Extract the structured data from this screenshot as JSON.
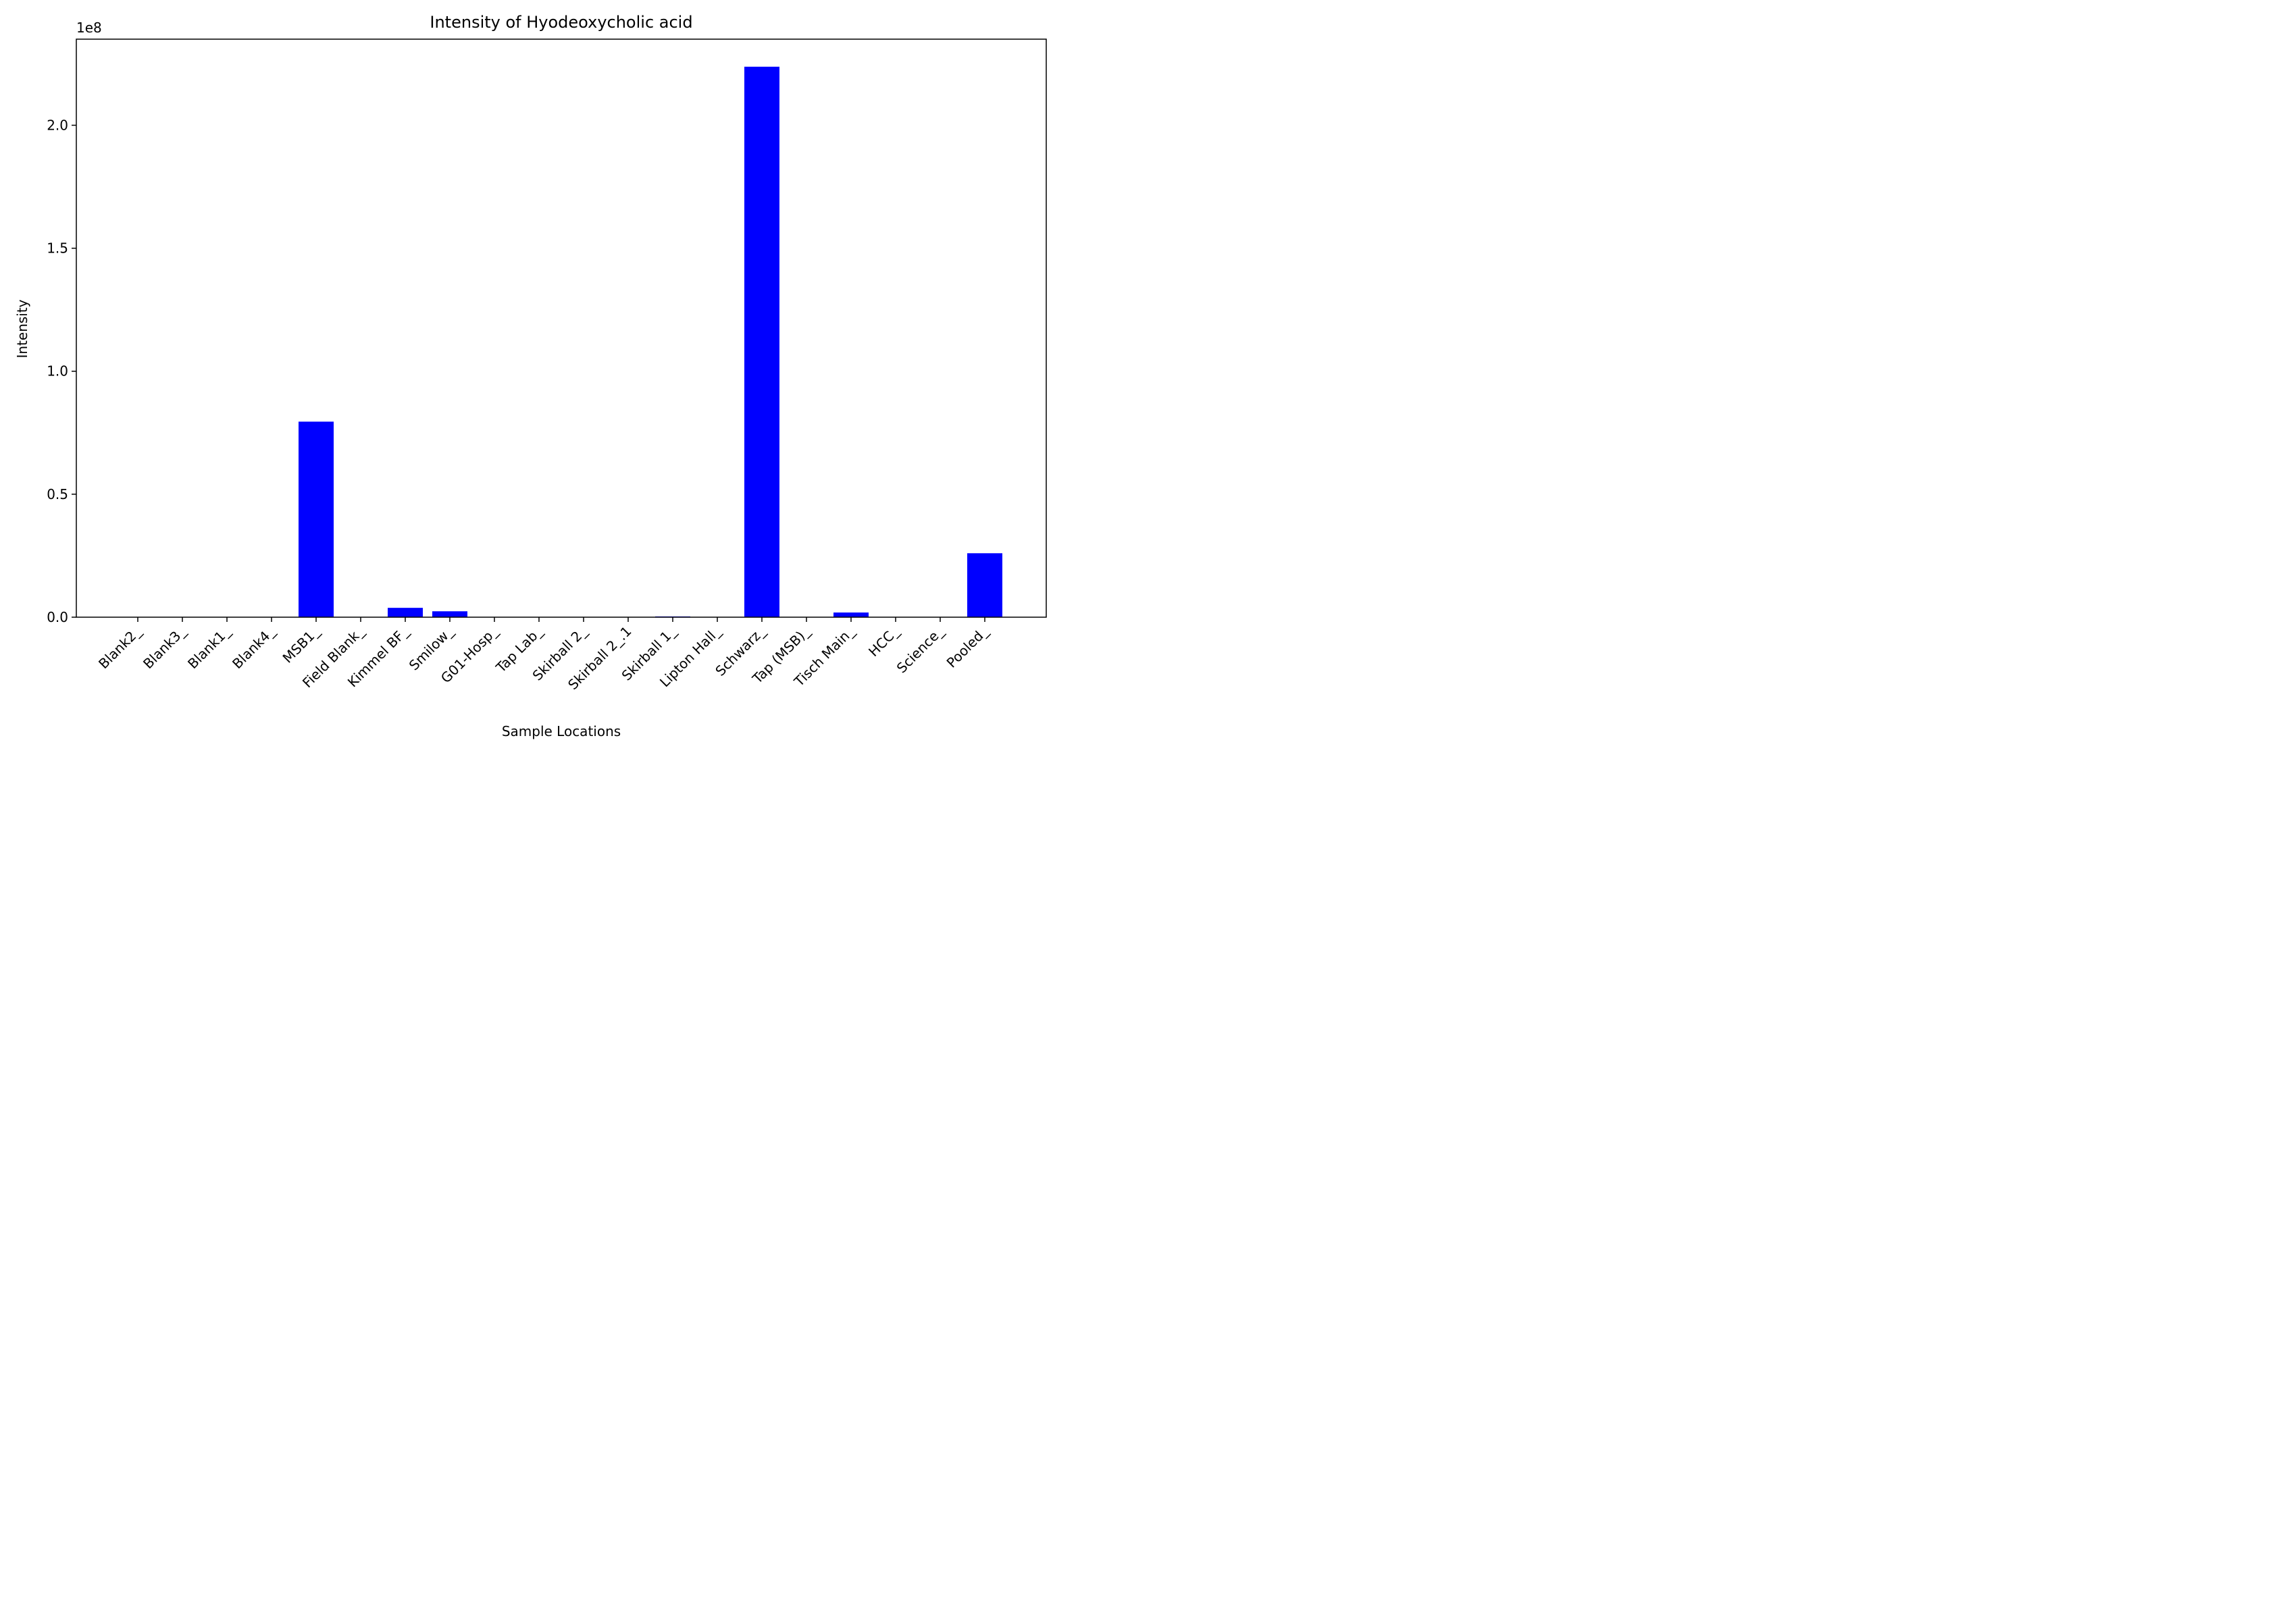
{
  "chart_data": {
    "type": "bar",
    "title": "Intensity of Hyodeoxycholic acid",
    "xlabel": "Sample Locations",
    "ylabel": "Intensity",
    "y_offset_label": "1e8",
    "ylim": [
      0,
      235000000.0
    ],
    "yticks": [
      0,
      50000000.0,
      100000000.0,
      150000000.0,
      200000000.0
    ],
    "ytick_labels": [
      "0.0",
      "0.5",
      "1.0",
      "1.5",
      "2.0"
    ],
    "bar_color": "#0000ff",
    "grid": false,
    "categories": [
      "Blank2_",
      "Blank3_",
      "Blank1_",
      "Blank4_",
      "MSB1_",
      "Field Blank_",
      "Kimmel BF_",
      "Smilow_",
      "G01-Hosp_",
      "Tap Lab_",
      "Skirball 2_",
      "Skirball 2_.1",
      "Skirball 1_",
      "Lipton Hall_",
      "Schwarz_",
      "Tap (MSB)_",
      "Tisch Main_",
      "HCC_",
      "Science_",
      "Pooled_"
    ],
    "values": [
      0,
      0,
      0,
      0,
      79500000,
      0,
      3800000,
      2400000,
      0,
      0,
      0,
      0,
      300000,
      0,
      223800000,
      0,
      1900000,
      0,
      0,
      26000000
    ]
  }
}
